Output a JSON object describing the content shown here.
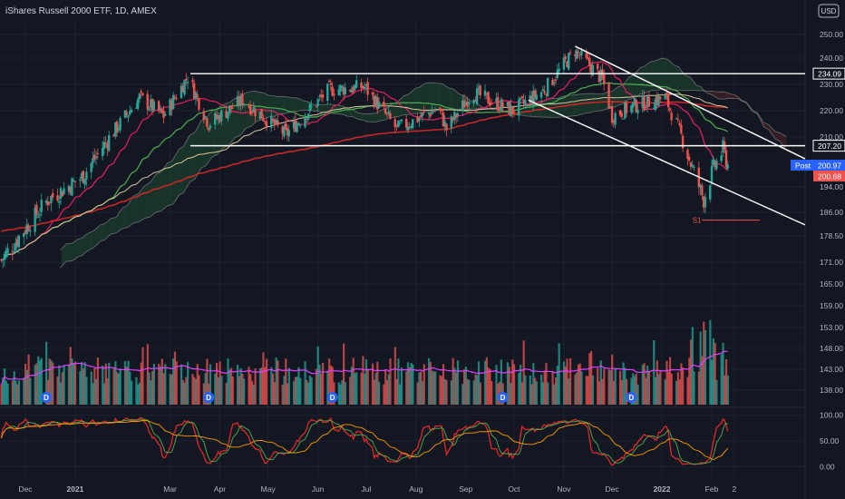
{
  "header": {
    "title": "iShares Russell 2000 ETF, 1D, AMEX",
    "currency": "USD"
  },
  "colors": {
    "background": "#131722",
    "grid": "#1e2230",
    "axis_text": "#b2b5be",
    "up": "#26a69a",
    "down": "#ef5350",
    "ma_red": "#c62828",
    "ma_pink": "#e91e63",
    "ma_green": "#4caf50",
    "ma_beige": "#d8c89a",
    "cloud_green": "#1b3a2c",
    "cloud_red": "#3c2024",
    "trendline": "#ffffff",
    "post_badge": "#2962ff",
    "last_badge": "#ef5350"
  },
  "chart_data": [
    {
      "type": "candlestick",
      "title": "iShares Russell 2000 ETF, 1D, AMEX",
      "y_ticks": [
        250.0,
        240.0,
        230.0,
        220.0,
        210.0,
        194.0,
        186.0,
        178.5,
        171.0,
        165.0,
        159.0,
        153.0,
        148.0,
        143.0,
        138.0
      ],
      "ylim": [
        136.0,
        253.0
      ],
      "x_ticks": [
        "Dec",
        "2021",
        "Mar",
        "Apr",
        "May",
        "Jun",
        "Jul",
        "Aug",
        "Sep",
        "Oct",
        "Nov",
        "Dec",
        "2022",
        "Feb",
        "2"
      ],
      "price_labels": {
        "resistance": "234.09",
        "support": "207.20",
        "post_tag": "Post",
        "post_price": "200.97",
        "last_price": "200.68",
        "s1": "S1"
      },
      "levels": {
        "resistance": 234.09,
        "support": 207.2,
        "s1": 183.5
      },
      "anchors": [
        [
          "2020-11-25",
          177
        ],
        [
          "2020-12-15",
          190
        ],
        [
          "2021-01-05",
          197
        ],
        [
          "2021-01-25",
          212
        ],
        [
          "2021-02-10",
          225
        ],
        [
          "2021-02-25",
          218
        ],
        [
          "2021-03-12",
          233
        ],
        [
          "2021-03-25",
          215
        ],
        [
          "2021-04-15",
          224
        ],
        [
          "2021-05-12",
          211
        ],
        [
          "2021-06-08",
          228
        ],
        [
          "2021-06-30",
          229
        ],
        [
          "2021-07-20",
          213
        ],
        [
          "2021-08-15",
          221
        ],
        [
          "2021-08-20",
          213
        ],
        [
          "2021-09-05",
          227
        ],
        [
          "2021-09-30",
          220
        ],
        [
          "2021-10-20",
          228
        ],
        [
          "2021-11-08",
          243
        ],
        [
          "2021-11-25",
          232
        ],
        [
          "2021-12-01",
          218
        ],
        [
          "2021-12-15",
          222
        ],
        [
          "2022-01-03",
          225
        ],
        [
          "2022-01-10",
          215
        ],
        [
          "2022-01-20",
          200
        ],
        [
          "2022-01-27",
          190
        ],
        [
          "2022-02-02",
          200
        ],
        [
          "2022-02-08",
          206
        ],
        [
          "2022-02-11",
          201
        ]
      ],
      "volume": {
        "y_range_label": "bottom of price pane",
        "profile": "tall spikes late Jan 2022"
      },
      "dividend_markers": [
        "D",
        "D",
        "D",
        "D",
        "D"
      ]
    },
    {
      "type": "line",
      "title": "",
      "y_ticks": [
        "100.00",
        "50.00",
        "0.00"
      ],
      "ylim": [
        -15,
        110
      ],
      "series": [
        {
          "color": "#e02828"
        },
        {
          "color": "#4caf50"
        },
        {
          "color": "#ff9800"
        }
      ]
    }
  ]
}
